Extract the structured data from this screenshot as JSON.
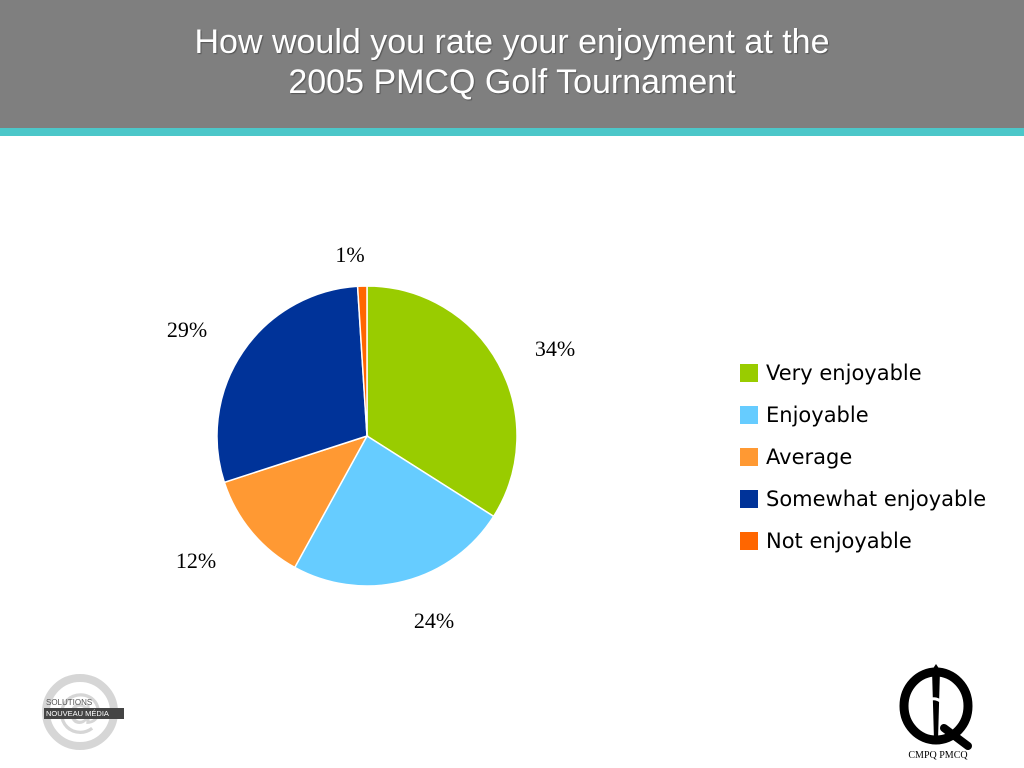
{
  "header": {
    "title_line1": "How would you rate your enjoyment at the",
    "title_line2": "2005 PMCQ Golf Tournament"
  },
  "chart_data": {
    "type": "pie",
    "title": "How would you rate your enjoyment at the 2005 PMCQ Golf Tournament",
    "start_angle_deg": 0,
    "direction": "clockwise",
    "legend_position": "right",
    "slices": [
      {
        "label": "Very enjoyable",
        "value": 34,
        "display": "34%",
        "color": "#99cc00"
      },
      {
        "label": "Enjoyable",
        "value": 24,
        "display": "24%",
        "color": "#66ccff"
      },
      {
        "label": "Average",
        "value": 12,
        "display": "12%",
        "color": "#ff9933"
      },
      {
        "label": "Somewhat enjoyable",
        "value": 29,
        "display": "29%",
        "color": "#003399"
      },
      {
        "label": "Not enjoyable",
        "value": 1,
        "display": "1%",
        "color": "#ff6600"
      }
    ]
  },
  "logos": {
    "left_line1": "SOLUTIONS",
    "left_line2": "NOUVEAU MÉDIA",
    "right_text": "CMPQ PMCQ"
  }
}
